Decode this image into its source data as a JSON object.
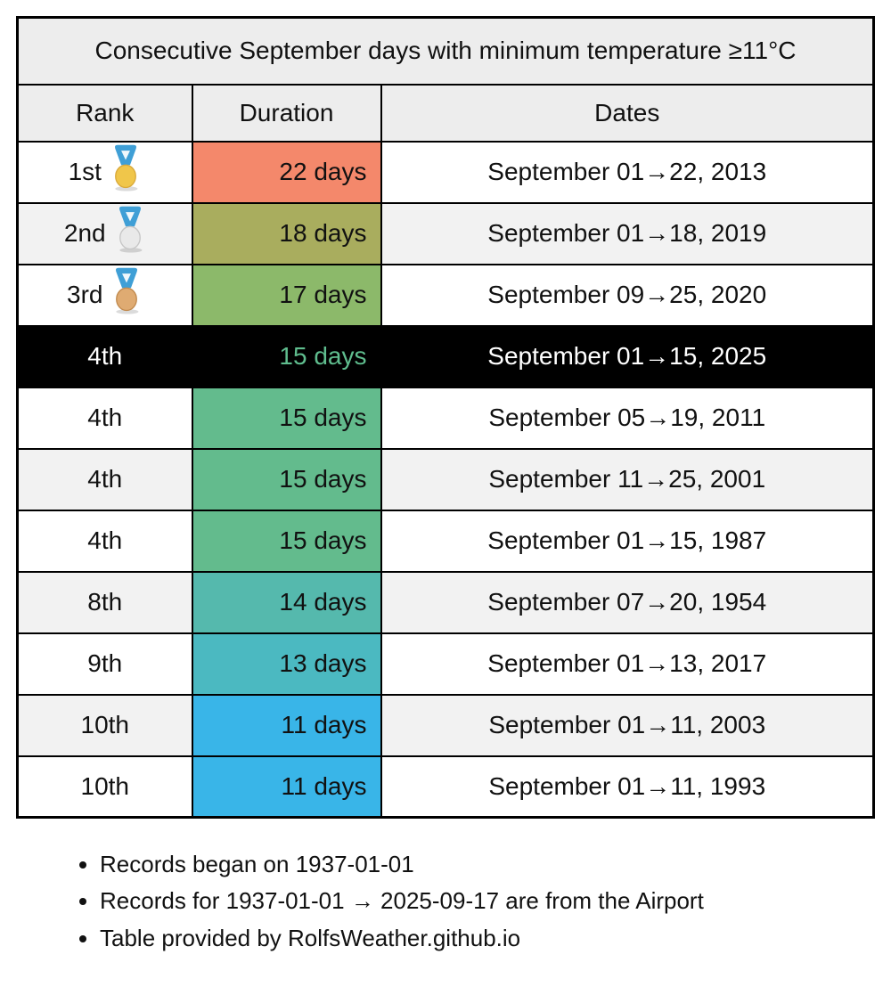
{
  "table": {
    "title": "Consecutive September days with minimum temperature ≥11°C",
    "columns": [
      "Rank",
      "Duration",
      "Dates"
    ],
    "medal_colors": {
      "ribbon": "#3f9fd6",
      "ribbon_hole": "#ffffff",
      "gold": "#f0c64a",
      "gold_edge": "#d9a93a",
      "silver": "#e9e9e9",
      "silver_edge": "#c6c6c6",
      "bronze": "#dfab72",
      "bronze_edge": "#c18a4e"
    },
    "rows": [
      {
        "rank": "1st",
        "medal": "gold",
        "duration": "22 days",
        "dates": "September 01→22, 2013",
        "duration_bg": "#f4886b",
        "highlight": false
      },
      {
        "rank": "2nd",
        "medal": "silver",
        "duration": "18 days",
        "dates": "September 01→18, 2019",
        "duration_bg": "#a9ad5e",
        "highlight": false
      },
      {
        "rank": "3rd",
        "medal": "bronze",
        "duration": "17 days",
        "dates": "September 09→25, 2020",
        "duration_bg": "#8cb96a",
        "highlight": false
      },
      {
        "rank": "4th",
        "medal": null,
        "duration": "15 days",
        "dates": "September 01→15, 2025",
        "duration_bg": "#000000",
        "duration_text_color": "#5fbd8e",
        "highlight": true
      },
      {
        "rank": "4th",
        "medal": null,
        "duration": "15 days",
        "dates": "September 05→19, 2011",
        "duration_bg": "#63bb8d",
        "highlight": false
      },
      {
        "rank": "4th",
        "medal": null,
        "duration": "15 days",
        "dates": "September 11→25, 2001",
        "duration_bg": "#63bb8d",
        "highlight": false
      },
      {
        "rank": "4th",
        "medal": null,
        "duration": "15 days",
        "dates": "September 01→15, 1987",
        "duration_bg": "#63bb8d",
        "highlight": false
      },
      {
        "rank": "8th",
        "medal": null,
        "duration": "14 days",
        "dates": "September 07→20, 1954",
        "duration_bg": "#55b9ad",
        "highlight": false
      },
      {
        "rank": "9th",
        "medal": null,
        "duration": "13 days",
        "dates": "September 01→13, 2017",
        "duration_bg": "#4bb9c1",
        "highlight": false
      },
      {
        "rank": "10th",
        "medal": null,
        "duration": "11 days",
        "dates": "September 01→11, 2003",
        "duration_bg": "#39b5e8",
        "highlight": false
      },
      {
        "rank": "10th",
        "medal": null,
        "duration": "11 days",
        "dates": "September 01→11, 1993",
        "duration_bg": "#39b5e8",
        "highlight": false
      }
    ]
  },
  "notes": {
    "items": [
      "Records began on 1937-01-01",
      "Records for 1937-01-01 → 2025-09-17 are from the Airport",
      "Table provided by RolfsWeather.github.io"
    ]
  },
  "colors": {
    "header_bg": "#ededed",
    "alt_row_bg": "#f2f2f2",
    "highlight_bg": "#000000",
    "highlight_text": "#ffffff",
    "highlight_duration_text": "#5fbd8e",
    "border": "#000000"
  },
  "chart_data": {
    "type": "table",
    "title": "Consecutive September days with minimum temperature ≥11°C",
    "columns": [
      "Rank",
      "Duration",
      "Dates"
    ],
    "categories": [
      "2013",
      "2019",
      "2020",
      "2025",
      "2011",
      "2001",
      "1987",
      "1954",
      "2017",
      "2003",
      "1993"
    ],
    "values": [
      22,
      18,
      17,
      15,
      15,
      15,
      15,
      14,
      13,
      11,
      11
    ],
    "rows": [
      [
        "1st",
        "22 days",
        "September 01→22, 2013"
      ],
      [
        "2nd",
        "18 days",
        "September 01→18, 2019"
      ],
      [
        "3rd",
        "17 days",
        "September 09→25, 2020"
      ],
      [
        "4th",
        "15 days",
        "September 01→15, 2025"
      ],
      [
        "4th",
        "15 days",
        "September 05→19, 2011"
      ],
      [
        "4th",
        "15 days",
        "September 11→25, 2001"
      ],
      [
        "4th",
        "15 days",
        "September 01→15, 1987"
      ],
      [
        "8th",
        "14 days",
        "September 07→20, 1954"
      ],
      [
        "9th",
        "13 days",
        "September 01→13, 2017"
      ],
      [
        "10th",
        "11 days",
        "September 01→11, 2003"
      ],
      [
        "10th",
        "11 days",
        "September 01→11, 1993"
      ]
    ],
    "highlighted_row_index": 3,
    "notes": [
      "Records began on 1937-01-01",
      "Records for 1937-01-01 → 2025-09-17 are from the Airport",
      "Table provided by RolfsWeather.github.io"
    ]
  }
}
